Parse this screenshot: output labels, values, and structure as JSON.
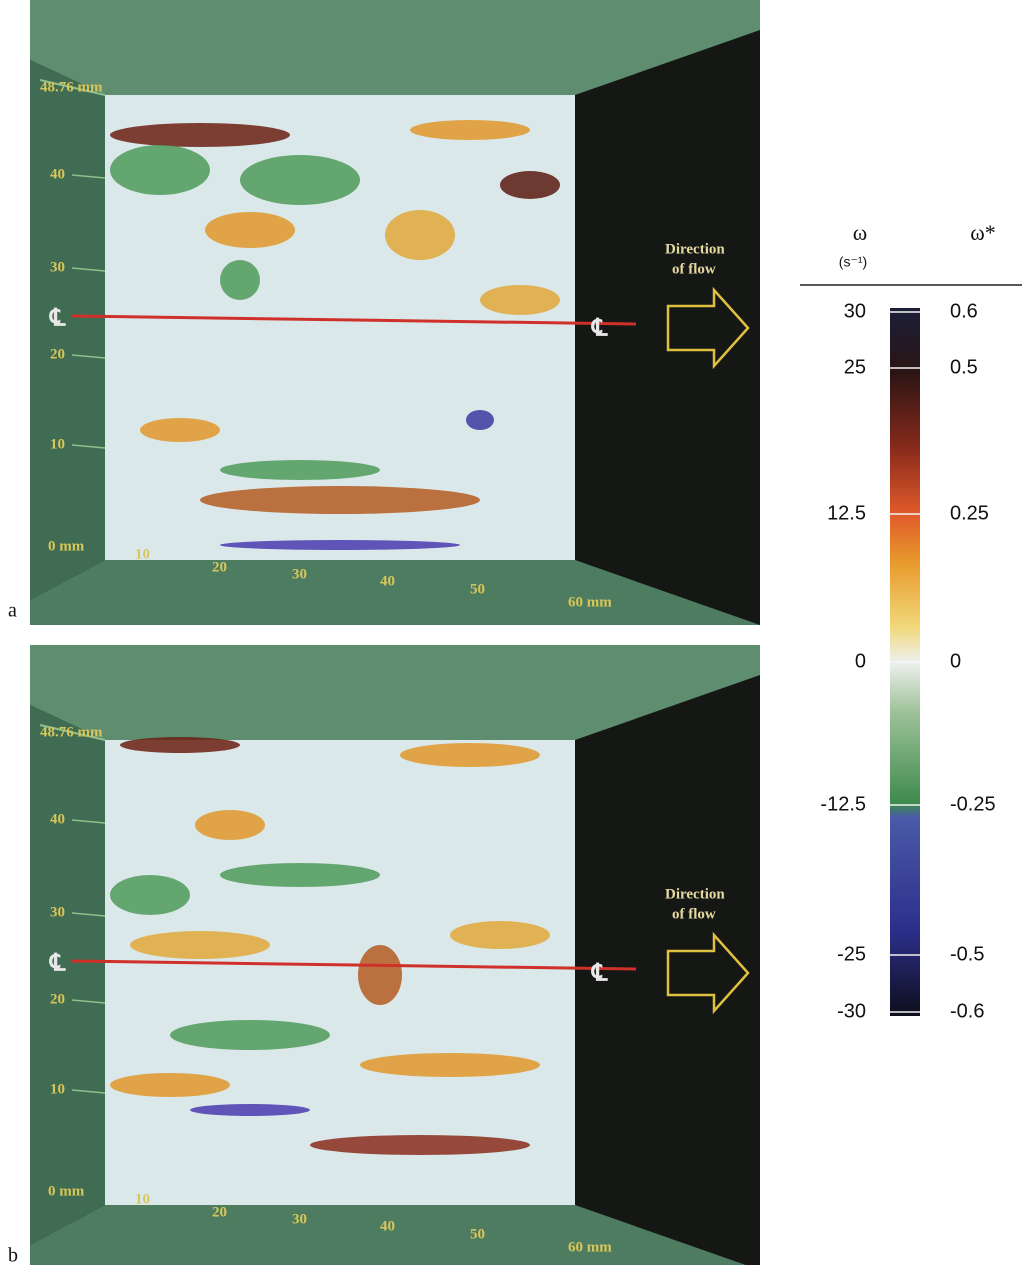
{
  "panels": [
    {
      "letter": "a",
      "y_top_label": "48.76 mm",
      "y_ticks": [
        "40",
        "30",
        "20",
        "10"
      ],
      "origin_label": "0 mm",
      "x_ticks": [
        "10",
        "20",
        "30",
        "40",
        "50"
      ],
      "x_end_label": "60 mm",
      "centerline_left": "℄",
      "centerline_right": "℄",
      "flow_label": [
        "Direction",
        "of flow"
      ]
    },
    {
      "letter": "b",
      "y_top_label": "48.76 mm",
      "y_ticks": [
        "40",
        "30",
        "20",
        "10"
      ],
      "origin_label": "0 mm",
      "x_ticks": [
        "10",
        "20",
        "30",
        "40",
        "50"
      ],
      "x_end_label": "60 mm",
      "centerline_left": "℄",
      "centerline_right": "℄",
      "flow_label": [
        "Direction",
        "of flow"
      ]
    }
  ],
  "colorbar": {
    "symbol": "ω",
    "unit": "(s⁻¹)",
    "symbol_star": "ω*",
    "left_ticks": [
      "30",
      "25",
      "12.5",
      "0",
      "-12.5",
      "-25",
      "-30"
    ],
    "right_ticks": [
      "0.6",
      "0.5",
      "0.25",
      "0",
      "-0.25",
      "-0.5",
      "-0.6"
    ]
  }
}
